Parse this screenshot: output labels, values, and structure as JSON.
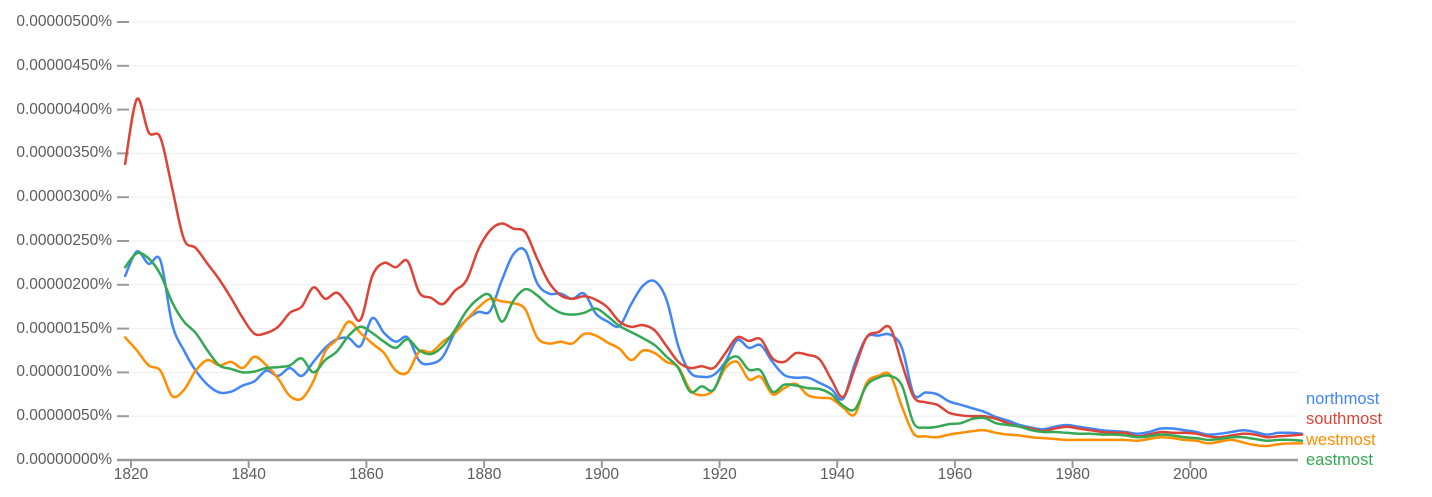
{
  "colors": {
    "background": "#ffffff",
    "grid": "#ededed",
    "axis": "#9a9a9a",
    "tick_label": "#5c5c5c"
  },
  "chart_data": {
    "type": "line",
    "title": "",
    "xlabel": "",
    "ylabel": "",
    "grid": true,
    "legend_position": "right-outside",
    "x_range": [
      1819,
      2019
    ],
    "y_range": [
      0.0,
      5.0
    ],
    "value_unit": "1e-6 percent (0.00000100% = 1.0)",
    "x_axis_ticks": [
      {
        "label": "1820",
        "year": 1820
      },
      {
        "label": "1840",
        "year": 1840
      },
      {
        "label": "1860",
        "year": 1860
      },
      {
        "label": "1880",
        "year": 1880
      },
      {
        "label": "1900",
        "year": 1900
      },
      {
        "label": "1920",
        "year": 1920
      },
      {
        "label": "1940",
        "year": 1940
      },
      {
        "label": "1960",
        "year": 1960
      },
      {
        "label": "1980",
        "year": 1980
      },
      {
        "label": "2000",
        "year": 2000
      }
    ],
    "y_axis_ticks": [
      {
        "label": "0.00000500%",
        "value": 5.0
      },
      {
        "label": "0.00000450%",
        "value": 4.5
      },
      {
        "label": "0.00000400%",
        "value": 4.0
      },
      {
        "label": "0.00000350%",
        "value": 3.5
      },
      {
        "label": "0.00000300%",
        "value": 3.0
      },
      {
        "label": "0.00000250%",
        "value": 2.5
      },
      {
        "label": "0.00000200%",
        "value": 2.0
      },
      {
        "label": "0.00000150%",
        "value": 1.5
      },
      {
        "label": "0.00000100%",
        "value": 1.0
      },
      {
        "label": "0.00000050%",
        "value": 0.5
      },
      {
        "label": "0.00000000%",
        "value": 0.0
      }
    ],
    "years": [
      1819,
      1821,
      1823,
      1825,
      1827,
      1829,
      1831,
      1833,
      1835,
      1837,
      1839,
      1841,
      1843,
      1845,
      1847,
      1849,
      1851,
      1853,
      1855,
      1857,
      1859,
      1861,
      1863,
      1865,
      1867,
      1869,
      1871,
      1873,
      1875,
      1877,
      1879,
      1881,
      1883,
      1885,
      1887,
      1889,
      1891,
      1893,
      1895,
      1897,
      1899,
      1901,
      1903,
      1905,
      1907,
      1909,
      1911,
      1913,
      1915,
      1917,
      1919,
      1921,
      1923,
      1925,
      1927,
      1929,
      1931,
      1933,
      1935,
      1937,
      1939,
      1941,
      1943,
      1945,
      1947,
      1949,
      1951,
      1953,
      1955,
      1957,
      1959,
      1961,
      1963,
      1965,
      1967,
      1969,
      1971,
      1973,
      1975,
      1977,
      1979,
      1981,
      1983,
      1985,
      1987,
      1989,
      1991,
      1993,
      1995,
      1997,
      1999,
      2001,
      2003,
      2005,
      2007,
      2009,
      2011,
      2013,
      2015,
      2017,
      2019
    ],
    "series": [
      {
        "name": "northmost",
        "color": "#4285F4",
        "values": [
          2.1,
          2.38,
          2.24,
          2.28,
          1.55,
          1.25,
          1.02,
          0.86,
          0.77,
          0.78,
          0.85,
          0.9,
          1.02,
          0.96,
          1.05,
          0.96,
          1.12,
          1.28,
          1.38,
          1.39,
          1.3,
          1.62,
          1.45,
          1.35,
          1.4,
          1.13,
          1.1,
          1.18,
          1.45,
          1.6,
          1.69,
          1.7,
          2.05,
          2.35,
          2.39,
          2.02,
          1.9,
          1.9,
          1.84,
          1.9,
          1.67,
          1.58,
          1.53,
          1.78,
          1.99,
          2.04,
          1.83,
          1.3,
          1.0,
          0.95,
          0.97,
          1.12,
          1.37,
          1.28,
          1.31,
          1.12,
          0.97,
          0.94,
          0.94,
          0.88,
          0.81,
          0.7,
          1.1,
          1.4,
          1.42,
          1.43,
          1.28,
          0.75,
          0.77,
          0.75,
          0.67,
          0.63,
          0.59,
          0.55,
          0.49,
          0.45,
          0.4,
          0.37,
          0.35,
          0.38,
          0.4,
          0.38,
          0.36,
          0.34,
          0.33,
          0.32,
          0.3,
          0.32,
          0.36,
          0.36,
          0.34,
          0.32,
          0.29,
          0.3,
          0.32,
          0.34,
          0.32,
          0.29,
          0.31,
          0.31,
          0.3
        ]
      },
      {
        "name": "southmost",
        "color": "#DB4437",
        "values": [
          3.38,
          4.12,
          3.74,
          3.68,
          3.1,
          2.52,
          2.42,
          2.24,
          2.06,
          1.85,
          1.62,
          1.44,
          1.45,
          1.52,
          1.68,
          1.75,
          1.97,
          1.84,
          1.91,
          1.76,
          1.6,
          2.1,
          2.25,
          2.2,
          2.27,
          1.91,
          1.85,
          1.78,
          1.93,
          2.05,
          2.4,
          2.62,
          2.7,
          2.64,
          2.6,
          2.3,
          2.03,
          1.88,
          1.84,
          1.87,
          1.83,
          1.74,
          1.58,
          1.52,
          1.54,
          1.48,
          1.3,
          1.12,
          1.05,
          1.07,
          1.05,
          1.22,
          1.4,
          1.36,
          1.38,
          1.16,
          1.12,
          1.22,
          1.2,
          1.15,
          0.92,
          0.72,
          1.05,
          1.4,
          1.46,
          1.51,
          1.1,
          0.72,
          0.66,
          0.63,
          0.54,
          0.51,
          0.5,
          0.5,
          0.47,
          0.42,
          0.38,
          0.36,
          0.33,
          0.36,
          0.38,
          0.36,
          0.34,
          0.32,
          0.31,
          0.31,
          0.27,
          0.29,
          0.32,
          0.31,
          0.31,
          0.3,
          0.27,
          0.26,
          0.28,
          0.3,
          0.29,
          0.26,
          0.27,
          0.28,
          0.29
        ]
      },
      {
        "name": "westmost",
        "color": "#FF8F00",
        "values": [
          1.4,
          1.25,
          1.08,
          1.02,
          0.73,
          0.8,
          1.02,
          1.14,
          1.08,
          1.12,
          1.05,
          1.18,
          1.08,
          0.93,
          0.73,
          0.7,
          0.9,
          1.24,
          1.38,
          1.58,
          1.45,
          1.33,
          1.22,
          1.02,
          1.0,
          1.24,
          1.23,
          1.35,
          1.45,
          1.6,
          1.74,
          1.84,
          1.81,
          1.79,
          1.72,
          1.4,
          1.33,
          1.35,
          1.33,
          1.44,
          1.42,
          1.34,
          1.27,
          1.14,
          1.25,
          1.22,
          1.12,
          1.06,
          0.8,
          0.74,
          0.8,
          1.05,
          1.12,
          0.92,
          0.95,
          0.75,
          0.82,
          0.87,
          0.74,
          0.71,
          0.7,
          0.6,
          0.52,
          0.88,
          0.96,
          0.97,
          0.61,
          0.3,
          0.27,
          0.26,
          0.29,
          0.31,
          0.33,
          0.34,
          0.31,
          0.29,
          0.28,
          0.26,
          0.25,
          0.24,
          0.23,
          0.23,
          0.23,
          0.23,
          0.23,
          0.23,
          0.22,
          0.24,
          0.26,
          0.25,
          0.23,
          0.22,
          0.19,
          0.21,
          0.23,
          0.2,
          0.17,
          0.16,
          0.18,
          0.19,
          0.19
        ]
      },
      {
        "name": "eastmost",
        "color": "#34A853",
        "values": [
          2.2,
          2.36,
          2.3,
          2.12,
          1.8,
          1.58,
          1.45,
          1.25,
          1.08,
          1.04,
          1.0,
          1.01,
          1.05,
          1.06,
          1.08,
          1.16,
          1.0,
          1.14,
          1.24,
          1.42,
          1.52,
          1.45,
          1.35,
          1.28,
          1.38,
          1.25,
          1.21,
          1.3,
          1.48,
          1.7,
          1.84,
          1.88,
          1.58,
          1.82,
          1.95,
          1.88,
          1.76,
          1.68,
          1.66,
          1.68,
          1.73,
          1.64,
          1.53,
          1.46,
          1.39,
          1.31,
          1.18,
          1.05,
          0.78,
          0.84,
          0.8,
          1.1,
          1.18,
          1.03,
          1.02,
          0.78,
          0.86,
          0.85,
          0.82,
          0.81,
          0.75,
          0.62,
          0.58,
          0.85,
          0.94,
          0.96,
          0.85,
          0.42,
          0.37,
          0.38,
          0.41,
          0.42,
          0.47,
          0.48,
          0.42,
          0.4,
          0.38,
          0.34,
          0.32,
          0.32,
          0.31,
          0.3,
          0.3,
          0.29,
          0.29,
          0.28,
          0.26,
          0.27,
          0.29,
          0.28,
          0.26,
          0.25,
          0.23,
          0.24,
          0.26,
          0.26,
          0.24,
          0.22,
          0.23,
          0.23,
          0.22
        ]
      }
    ]
  }
}
